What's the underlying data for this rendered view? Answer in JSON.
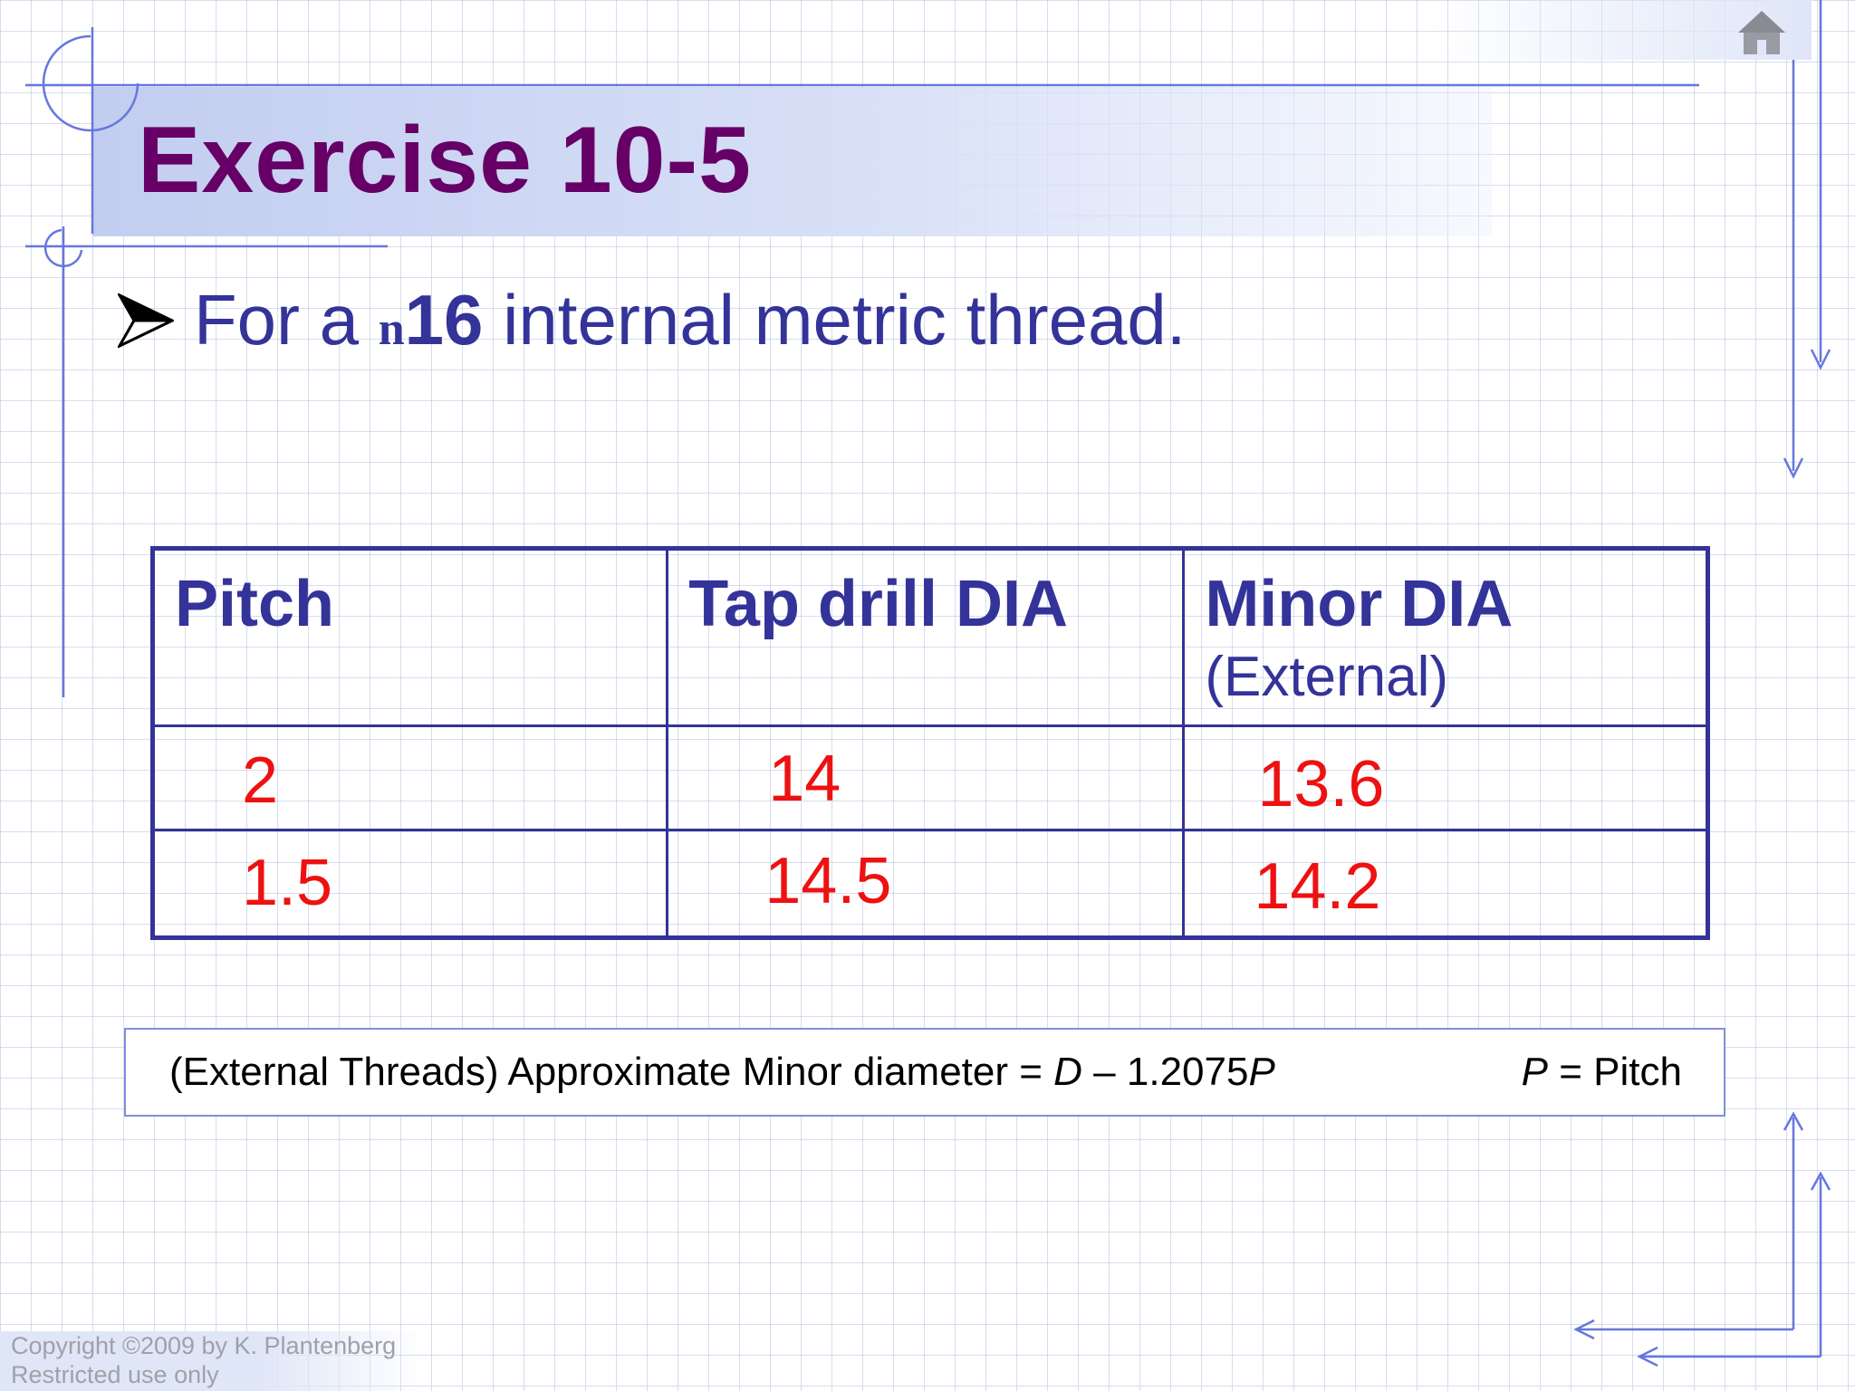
{
  "slide": {
    "title": "Exercise 10-5",
    "bullet": {
      "prefix": "For a ",
      "symbol": "n",
      "size": "16",
      "suffix": " internal metric thread."
    }
  },
  "table": {
    "headers": [
      {
        "label": "Pitch",
        "sub": ""
      },
      {
        "label": "Tap drill DIA",
        "sub": ""
      },
      {
        "label": "Minor DIA",
        "sub": "(External)"
      }
    ],
    "rows": [
      [
        "2",
        "14",
        "13.6"
      ],
      [
        "1.5",
        "14.5",
        "14.2"
      ]
    ]
  },
  "formula": {
    "text": "(External Threads) Approximate Minor diameter = ",
    "d_var": "D",
    "minus": " – 1.2075",
    "p_var": "P",
    "legend_var": "P",
    "legend_text": " = Pitch"
  },
  "footer": {
    "copyright": "Copyright ©2009 by K. Plantenberg",
    "restricted": "Restricted use only"
  },
  "icons": {
    "home": "home-icon",
    "bullet": "bullet-arrow-icon"
  },
  "colors": {
    "title": "#660066",
    "body_text": "#333399",
    "values": "#ee1111",
    "accent_lines": "#6677dd"
  }
}
